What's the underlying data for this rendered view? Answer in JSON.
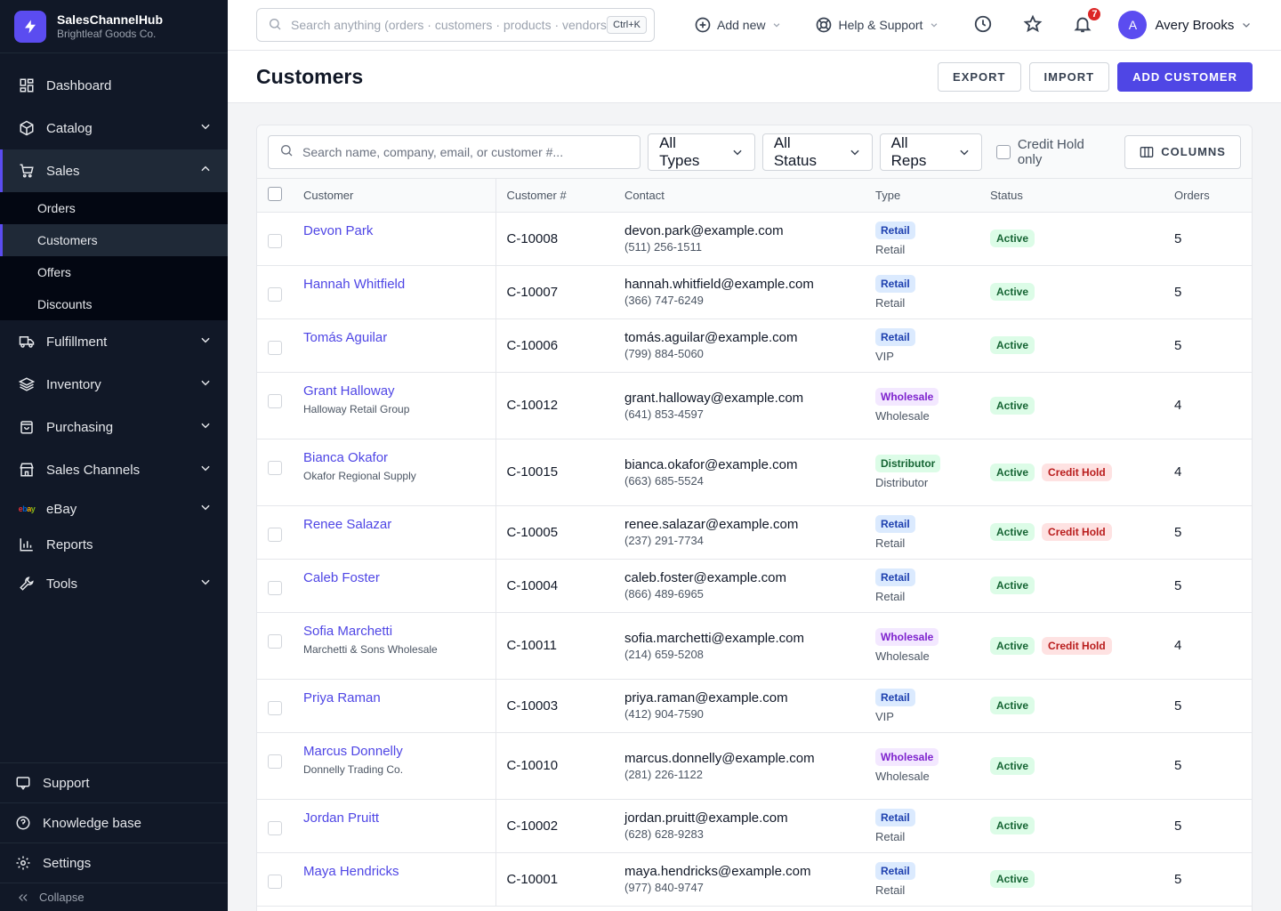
{
  "brand": {
    "name": "SalesChannelHub",
    "org": "Brightleaf Goods Co."
  },
  "nav": {
    "dashboard": "Dashboard",
    "catalog": "Catalog",
    "sales": "Sales",
    "sales_sub": [
      "Orders",
      "Customers",
      "Offers",
      "Discounts"
    ],
    "fulfillment": "Fulfillment",
    "inventory": "Inventory",
    "purchasing": "Purchasing",
    "sales_channels": "Sales Channels",
    "ebay": "eBay",
    "reports": "Reports",
    "tools": "Tools"
  },
  "sidebar_bottom": {
    "support": "Support",
    "knowledge_base": "Knowledge base",
    "settings": "Settings",
    "collapse": "Collapse"
  },
  "topbar": {
    "search_placeholder": "Search anything (orders · customers · products · vendors)",
    "shortcut": "Ctrl+K",
    "add_new": "Add new",
    "help": "Help & Support",
    "notifications_count": "7",
    "user_initial": "A",
    "user_name": "Avery Brooks"
  },
  "page": {
    "title": "Customers",
    "export": "EXPORT",
    "import": "IMPORT",
    "add": "ADD CUSTOMER"
  },
  "filters": {
    "search_placeholder": "Search name, company, email, or customer #...",
    "types": "All Types",
    "status": "All Status",
    "reps": "All Reps",
    "credit_hold": "Credit Hold only",
    "columns": "COLUMNS"
  },
  "table": {
    "headers": {
      "customer": "Customer",
      "number": "Customer #",
      "contact": "Contact",
      "type": "Type",
      "status": "Status",
      "orders": "Orders"
    },
    "rows": [
      {
        "name": "Devon Park",
        "company": "",
        "number": "C-10008",
        "email": "devon.park@example.com",
        "phone": "(511) 256-1511",
        "type": "Retail",
        "type_class": "retail",
        "type_sub": "Retail",
        "status": "Active",
        "hold": "",
        "orders": "5",
        "h": 60
      },
      {
        "name": "Hannah Whitfield",
        "company": "",
        "number": "C-10007",
        "email": "hannah.whitfield@example.com",
        "phone": "(366) 747-6249",
        "type": "Retail",
        "type_class": "retail",
        "type_sub": "Retail",
        "status": "Active",
        "hold": "",
        "orders": "5",
        "h": 60
      },
      {
        "name": "Tomás Aguilar",
        "company": "",
        "number": "C-10006",
        "email": "tomás.aguilar@example.com",
        "phone": "(799) 884-5060",
        "type": "Retail",
        "type_class": "retail",
        "type_sub": "VIP",
        "status": "Active",
        "hold": "",
        "orders": "5",
        "h": 60
      },
      {
        "name": "Grant Halloway",
        "company": "Halloway Retail Group",
        "number": "C-10012",
        "email": "grant.halloway@example.com",
        "phone": "(641) 853-4597",
        "type": "Wholesale",
        "type_class": "wholesale",
        "type_sub": "Wholesale",
        "status": "Active",
        "hold": "",
        "orders": "4",
        "h": 75
      },
      {
        "name": "Bianca Okafor",
        "company": "Okafor Regional Supply",
        "number": "C-10015",
        "email": "bianca.okafor@example.com",
        "phone": "(663) 685-5524",
        "type": "Distributor",
        "type_class": "distributor",
        "type_sub": "Distributor",
        "status": "Active",
        "hold": "Credit Hold",
        "orders": "4",
        "h": 75
      },
      {
        "name": "Renee Salazar",
        "company": "",
        "number": "C-10005",
        "email": "renee.salazar@example.com",
        "phone": "(237) 291-7734",
        "type": "Retail",
        "type_class": "retail",
        "type_sub": "Retail",
        "status": "Active",
        "hold": "Credit Hold",
        "orders": "5",
        "h": 60
      },
      {
        "name": "Caleb Foster",
        "company": "",
        "number": "C-10004",
        "email": "caleb.foster@example.com",
        "phone": "(866) 489-6965",
        "type": "Retail",
        "type_class": "retail",
        "type_sub": "Retail",
        "status": "Active",
        "hold": "",
        "orders": "5",
        "h": 60
      },
      {
        "name": "Sofia Marchetti",
        "company": "Marchetti & Sons Wholesale",
        "number": "C-10011",
        "email": "sofia.marchetti@example.com",
        "phone": "(214) 659-5208",
        "type": "Wholesale",
        "type_class": "wholesale",
        "type_sub": "Wholesale",
        "status": "Active",
        "hold": "Credit Hold",
        "orders": "4",
        "h": 75
      },
      {
        "name": "Priya Raman",
        "company": "",
        "number": "C-10003",
        "email": "priya.raman@example.com",
        "phone": "(412) 904-7590",
        "type": "Retail",
        "type_class": "retail",
        "type_sub": "VIP",
        "status": "Active",
        "hold": "",
        "orders": "5",
        "h": 60
      },
      {
        "name": "Marcus Donnelly",
        "company": "Donnelly Trading Co.",
        "number": "C-10010",
        "email": "marcus.donnelly@example.com",
        "phone": "(281) 226-1122",
        "type": "Wholesale",
        "type_class": "wholesale",
        "type_sub": "Wholesale",
        "status": "Active",
        "hold": "",
        "orders": "5",
        "h": 75
      },
      {
        "name": "Jordan Pruitt",
        "company": "",
        "number": "C-10002",
        "email": "jordan.pruitt@example.com",
        "phone": "(628) 628-9283",
        "type": "Retail",
        "type_class": "retail",
        "type_sub": "Retail",
        "status": "Active",
        "hold": "",
        "orders": "5",
        "h": 60
      },
      {
        "name": "Maya Hendricks",
        "company": "",
        "number": "C-10001",
        "email": "maya.hendricks@example.com",
        "phone": "(977) 840-9747",
        "type": "Retail",
        "type_class": "retail",
        "type_sub": "Retail",
        "status": "Active",
        "hold": "",
        "orders": "5",
        "h": 60
      }
    ]
  },
  "colors": {
    "accent": "#4f46e5",
    "sidebar_bg": "#111827",
    "badge": "#dc2626"
  }
}
